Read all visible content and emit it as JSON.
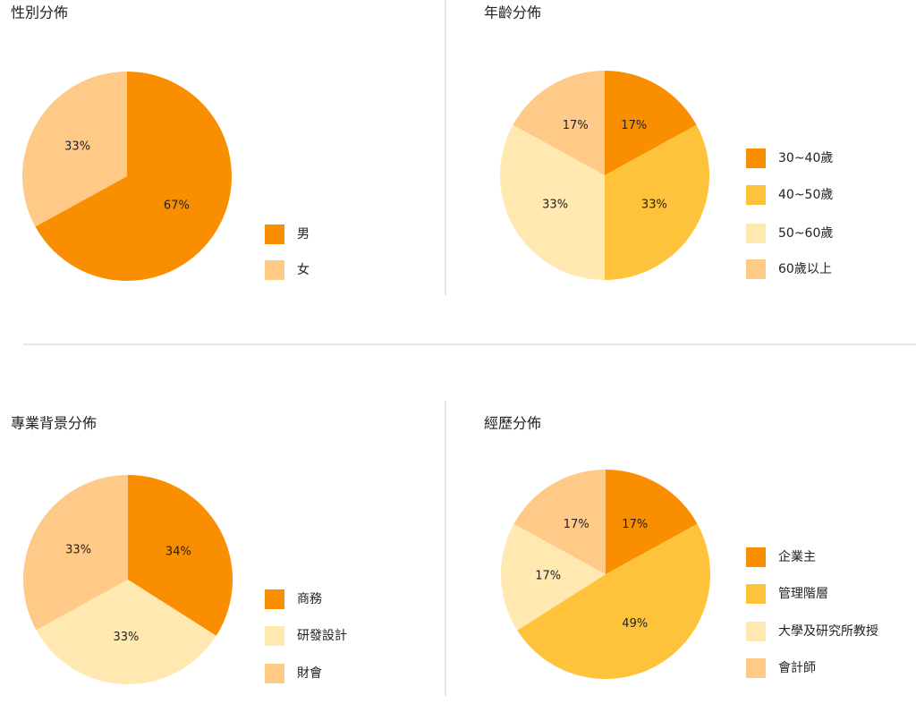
{
  "chart_data": [
    {
      "type": "pie",
      "title": "性別分佈",
      "categories": [
        "男",
        "女"
      ],
      "values": [
        67,
        33
      ],
      "value_labels": [
        "67%",
        "33%"
      ],
      "colors": [
        "#f98e00",
        "#ffc987"
      ]
    },
    {
      "type": "pie",
      "title": "年齡分佈",
      "categories": [
        "30~40歲",
        "40~50歲",
        "50~60歲",
        "60歲以上"
      ],
      "values": [
        17,
        33,
        33,
        17
      ],
      "value_labels": [
        "17%",
        "33%",
        "33%",
        "17%"
      ],
      "colors": [
        "#f98e00",
        "#fec33a",
        "#ffe9b0",
        "#ffc987"
      ]
    },
    {
      "type": "pie",
      "title": "專業背景分佈",
      "categories": [
        "商務",
        "研發設計",
        "財會"
      ],
      "values": [
        34,
        33,
        33
      ],
      "value_labels": [
        "34%",
        "33%",
        "33%"
      ],
      "colors": [
        "#f98e00",
        "#ffe9b0",
        "#ffc987"
      ]
    },
    {
      "type": "pie",
      "title": "經歷分佈",
      "categories": [
        "企業主",
        "管理階層",
        "大學及研究所教授",
        "會計師"
      ],
      "values": [
        17,
        49,
        17,
        17
      ],
      "value_labels": [
        "17%",
        "49%",
        "17%",
        "17%"
      ],
      "colors": [
        "#f98e00",
        "#fec33a",
        "#ffe9b0",
        "#ffc987"
      ]
    }
  ]
}
